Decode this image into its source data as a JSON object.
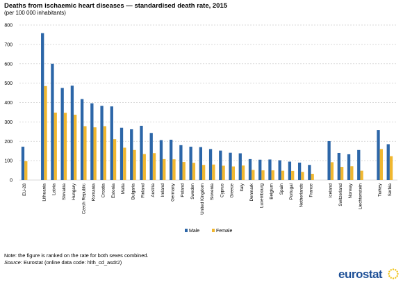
{
  "title": "Deaths from ischaemic heart diseases — standardised death rate, 2015",
  "subtitle": "(per 100 000 inhabitants)",
  "note": "Note: the figure is ranked on the rate for both sexes combined.",
  "source_label": "Source:",
  "source_text": " Eurostat (online data code: hlth_cd_asdr2)",
  "logo_text": "eurostat",
  "colors": {
    "male": "#2c66a8",
    "female": "#f0b730",
    "grid": "#cccccc",
    "logo": "#1d4f96"
  },
  "chart_data": {
    "type": "bar",
    "title": "Deaths from ischaemic heart diseases — standardised death rate, 2015",
    "subtitle": "(per 100 000 inhabitants)",
    "ylim": [
      0,
      800
    ],
    "yticks": [
      0,
      100,
      200,
      300,
      400,
      500,
      600,
      700,
      800
    ],
    "grid": true,
    "legend_position": "bottom",
    "categories": [
      "EU-28",
      "Lithuania",
      "Latvia",
      "Slovakia",
      "Hungary",
      "Czech Republic",
      "Romania",
      "Croatia",
      "Estonia",
      "Malta",
      "Bulgaria",
      "Finland",
      "Austria",
      "Ireland",
      "Germany",
      "Poland",
      "Sweden",
      "United Kingdom",
      "Slovenia",
      "Cyprus",
      "Greece",
      "Italy",
      "Denmark",
      "Luxembourg",
      "Belgium",
      "Spain",
      "Portugal",
      "Netherlands",
      "France",
      "Iceland",
      "Switzerland",
      "Norway",
      "Liechtenstein",
      "Turkey",
      "Serbia"
    ],
    "groups_gap_after": [
      0,
      28,
      32
    ],
    "series": [
      {
        "name": "Male",
        "values": [
          172,
          758,
          600,
          475,
          487,
          418,
          396,
          383,
          380,
          270,
          262,
          280,
          243,
          206,
          208,
          180,
          172,
          170,
          160,
          152,
          141,
          138,
          108,
          105,
          106,
          102,
          95,
          90,
          78,
          201,
          140,
          133,
          155,
          258,
          185
        ]
      },
      {
        "name": "Female",
        "values": [
          97,
          485,
          348,
          347,
          337,
          278,
          272,
          278,
          211,
          167,
          155,
          134,
          139,
          108,
          107,
          93,
          89,
          78,
          80,
          74,
          70,
          75,
          52,
          50,
          50,
          48,
          47,
          42,
          32,
          92,
          68,
          71,
          48,
          160,
          123
        ]
      }
    ]
  }
}
